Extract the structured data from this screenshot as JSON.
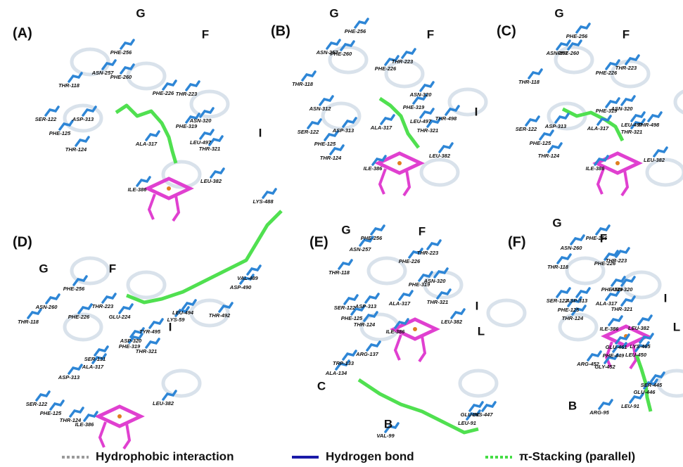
{
  "panels": [
    {
      "label": "(A)",
      "regions": [
        "G",
        "F",
        "I"
      ],
      "residues": [
        "PHE-256",
        "ASN-257",
        "PHE-260",
        "PHE-226",
        "THR-223",
        "THR-118",
        "ASN-320",
        "PHE-319",
        "SER-122",
        "ASP-313",
        "ALA-317",
        "LEU-497",
        "PHE-125",
        "THR-124",
        "THR-321",
        "ILE-386",
        "LEU-382"
      ]
    },
    {
      "label": "(B)",
      "regions": [
        "G",
        "F",
        "I"
      ],
      "residues": [
        "PHE-256",
        "ASN-257",
        "PHE-260",
        "THR-223",
        "PHE-226",
        "THR-118",
        "ASN-312",
        "ASN-320",
        "PHE-319",
        "SER-122",
        "ASP-313",
        "ALA-317",
        "LEU-497",
        "THR-498",
        "THR-321",
        "PHE-125",
        "THR-124",
        "LEU-382",
        "ILE-386"
      ]
    },
    {
      "label": "(C)",
      "regions": [
        "G",
        "F"
      ],
      "residues": [
        "PHE-256",
        "ASN-257",
        "PHE-260",
        "PHE-226",
        "THR-223",
        "THR-118",
        "ASN-320",
        "PHE-319",
        "SER-122",
        "ASP-313",
        "ALA-317",
        "LEU-497",
        "THR-498",
        "THR-321",
        "PHE-125",
        "THR-124",
        "LEU-382",
        "ILE-386"
      ]
    },
    {
      "label": "(D)",
      "regions": [
        "G",
        "F",
        "I"
      ],
      "residues": [
        "LYS-488",
        "VAL-489",
        "ASP-490",
        "THR-492",
        "LEU-494",
        "LYS-59",
        "PHE-226",
        "GLU-224",
        "THR-223",
        "TYR-495",
        "ASP-320",
        "PHE-319",
        "SER-131",
        "ALA-317",
        "THR-321",
        "PHE-256",
        "ASN-260",
        "THR-118",
        "ASP-313",
        "SER-122",
        "PHE-125",
        "THR-124",
        "LEU-382",
        "ILE-386"
      ]
    },
    {
      "label": "(E)",
      "regions": [
        "G",
        "F",
        "I",
        "L",
        "C",
        "B"
      ],
      "residues": [
        "PHE-256",
        "ASN-257",
        "THR-223",
        "PHE-226",
        "THR-118",
        "ASN-320",
        "PHE-319",
        "SER-122",
        "ASP-313",
        "ALA-317",
        "THR-321",
        "PHE-125",
        "THR-124",
        "LEU-382",
        "ILE-386",
        "ARG-137",
        "TRP-133",
        "ALA-134",
        "GLU-91",
        "LYS-447",
        "LEU-91",
        "VAL-99"
      ]
    },
    {
      "label": "(F)",
      "regions": [
        "G",
        "F",
        "I",
        "L",
        "B"
      ],
      "residues": [
        "PHE-256",
        "ASN-260",
        "THR-223",
        "PHE-226",
        "THR-118",
        "PHE-319",
        "ASN-320",
        "SER-122",
        "ASP-313",
        "ALA-317",
        "PHE-125",
        "THR-321",
        "THR-124",
        "ILE-386",
        "LEU-382",
        "LYS-465",
        "GLU-461",
        "PHE-449",
        "LEU-450",
        "ARG-452",
        "GLY-452",
        "SER-445",
        "GLU-446",
        "ARG-95",
        "LEU-91"
      ]
    }
  ],
  "legend": [
    "Hydrophobic interaction",
    "Hydrogen bond",
    "π-Stacking (parallel)"
  ]
}
